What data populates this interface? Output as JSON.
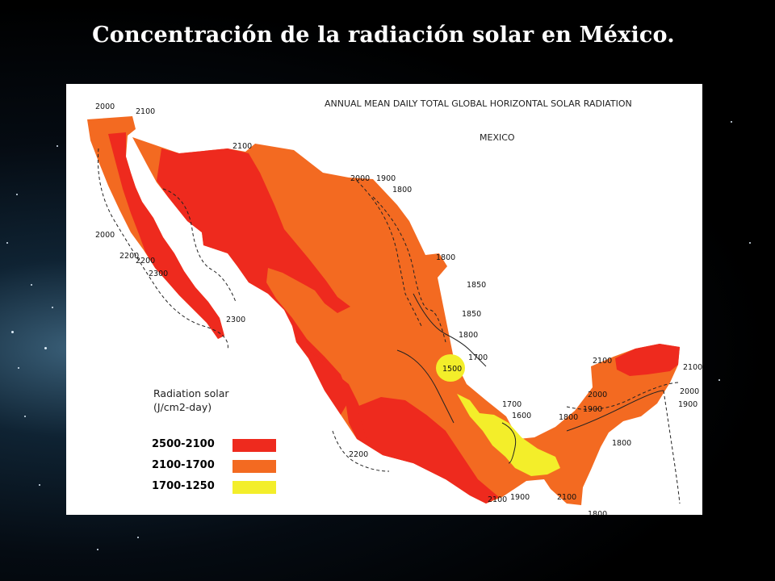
{
  "slide": {
    "title": "Concentración de la radiación solar en México."
  },
  "map": {
    "title_line1": "ANNUAL MEAN DAILY TOTAL GLOBAL HORIZONTAL SOLAR RADIATION",
    "title_line2": "MEXICO",
    "legend": {
      "title_line1": "Radiation solar",
      "title_line2": "(J/cm2-day)",
      "items": [
        {
          "range": "2500-2100",
          "color": "#ee2a1e"
        },
        {
          "range": "2100-1700",
          "color": "#f36a21"
        },
        {
          "range": "1700-1250",
          "color": "#f3ee2a"
        }
      ]
    },
    "colors": {
      "high": "#ee2a1e",
      "medium": "#f36a21",
      "low": "#f3ee2a",
      "isoline": "#222222",
      "water": "#ffffff"
    },
    "isoline_labels": [
      {
        "text": "2000"
      },
      {
        "text": "2100"
      },
      {
        "text": "2100"
      },
      {
        "text": "2000"
      },
      {
        "text": "1900"
      },
      {
        "text": "1800"
      },
      {
        "text": "2000"
      },
      {
        "text": "2200"
      },
      {
        "text": "2200"
      },
      {
        "text": "2300"
      },
      {
        "text": "2300"
      },
      {
        "text": "1800"
      },
      {
        "text": "1850"
      },
      {
        "text": "1850"
      },
      {
        "text": "1800"
      },
      {
        "text": "1700"
      },
      {
        "text": "1500"
      },
      {
        "text": "1700"
      },
      {
        "text": "1600"
      },
      {
        "text": "1800"
      },
      {
        "text": "1900"
      },
      {
        "text": "2000"
      },
      {
        "text": "2100"
      },
      {
        "text": "2100"
      },
      {
        "text": "2000"
      },
      {
        "text": "1900"
      },
      {
        "text": "1800"
      },
      {
        "text": "2200"
      },
      {
        "text": "2100"
      },
      {
        "text": "1900"
      },
      {
        "text": "2100"
      },
      {
        "text": "1800"
      }
    ]
  }
}
